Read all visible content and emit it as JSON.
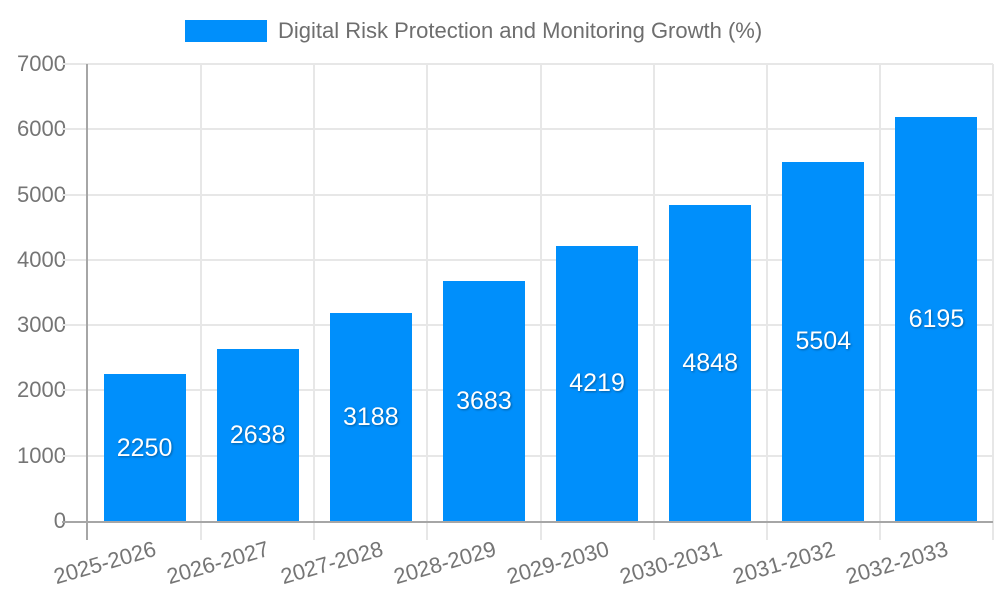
{
  "legend": {
    "label": "Digital Risk Protection and Monitoring Growth (%)"
  },
  "chart_data": {
    "type": "bar",
    "title": "Digital Risk Protection and Monitoring Growth (%)",
    "categories": [
      "2025-2026",
      "2026-2027",
      "2027-2028",
      "2028-2029",
      "2029-2030",
      "2030-2031",
      "2031-2032",
      "2032-2033"
    ],
    "values": [
      2250,
      2638,
      3188,
      3683,
      4219,
      4848,
      5504,
      6195
    ],
    "xlabel": "",
    "ylabel": "",
    "ylim": [
      0,
      7000
    ],
    "ytick_step": 1000,
    "ytick_labels": [
      "0",
      "1000",
      "2000",
      "3000",
      "4000",
      "5000",
      "6000",
      "7000"
    ],
    "grid": true,
    "legend_position": "top",
    "bar_value_labels_inside": true,
    "x_label_rotation_deg": -16,
    "colors": {
      "bar": "#008FFB",
      "grid": "#e7e7e7",
      "axis": "#a6a6a6",
      "tick_text": "#757575",
      "legend_text": "#6e6e6e",
      "bar_label_text": "#ffffff",
      "background": "#ffffff"
    }
  }
}
